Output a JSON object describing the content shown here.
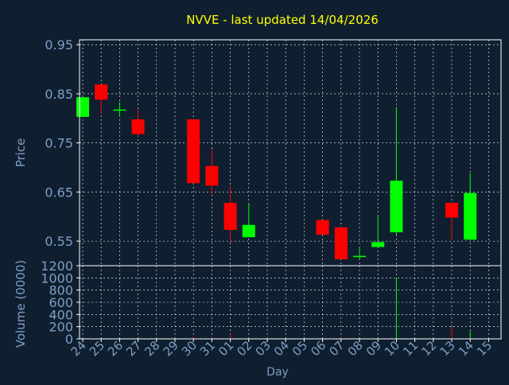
{
  "colors": {
    "background": "#0f1f30",
    "title": "#ffff00",
    "axis_text": "#7f9fc4",
    "frame": "#ffffff",
    "grid": "#ffffff",
    "up": "#00ff00",
    "down": "#ff0000"
  },
  "chart_data": [
    {
      "type": "candlestick",
      "title": "NVVE - last updated 14/04/2026",
      "ylabel": "Price",
      "ylim": [
        0.5,
        0.96
      ],
      "yticks": [
        "0.95",
        "0.85",
        "0.75",
        "0.65",
        "0.55"
      ],
      "ytick_values": [
        0.95,
        0.85,
        0.75,
        0.65,
        0.55
      ],
      "grid": true,
      "x_categories": [
        "24",
        "25",
        "26",
        "27",
        "28",
        "29",
        "30",
        "31",
        "01",
        "02",
        "03",
        "04",
        "05",
        "06",
        "07",
        "08",
        "09",
        "10",
        "11",
        "12",
        "13",
        "14",
        "15"
      ],
      "candles": [
        {
          "day": "24",
          "open": 0.803,
          "high": 0.843,
          "low": 0.803,
          "close": 0.843
        },
        {
          "day": "25",
          "open": 0.869,
          "high": 0.869,
          "low": 0.808,
          "close": 0.838
        },
        {
          "day": "26",
          "open": 0.818,
          "high": 0.833,
          "low": 0.803,
          "close": 0.818
        },
        {
          "day": "27",
          "open": 0.798,
          "high": 0.818,
          "low": 0.763,
          "close": 0.768
        },
        {
          "day": "30",
          "open": 0.798,
          "high": 0.798,
          "low": 0.668,
          "close": 0.668
        },
        {
          "day": "31",
          "open": 0.703,
          "high": 0.738,
          "low": 0.643,
          "close": 0.663
        },
        {
          "day": "01",
          "open": 0.628,
          "high": 0.663,
          "low": 0.548,
          "close": 0.573
        },
        {
          "day": "02",
          "open": 0.558,
          "high": 0.628,
          "low": 0.558,
          "close": 0.583
        },
        {
          "day": "06",
          "open": 0.593,
          "high": 0.593,
          "low": 0.563,
          "close": 0.563
        },
        {
          "day": "07",
          "open": 0.578,
          "high": 0.578,
          "low": 0.513,
          "close": 0.513
        },
        {
          "day": "08",
          "open": 0.518,
          "high": 0.538,
          "low": 0.513,
          "close": 0.52
        },
        {
          "day": "09",
          "open": 0.538,
          "high": 0.603,
          "low": 0.538,
          "close": 0.548
        },
        {
          "day": "10",
          "open": 0.568,
          "high": 0.823,
          "low": 0.563,
          "close": 0.673
        },
        {
          "day": "13",
          "open": 0.628,
          "high": 0.628,
          "low": 0.553,
          "close": 0.598
        },
        {
          "day": "14",
          "open": 0.553,
          "high": 0.688,
          "low": 0.553,
          "close": 0.648
        }
      ]
    },
    {
      "type": "bar",
      "ylabel": "Volume (0000)",
      "xlabel": "Day",
      "ylim": [
        0,
        1200
      ],
      "yticks": [
        "1200",
        "1000",
        "800",
        "600",
        "400",
        "200",
        "0"
      ],
      "ytick_values": [
        1200,
        1000,
        800,
        600,
        400,
        200,
        0
      ],
      "grid": true,
      "x_categories": [
        "24",
        "25",
        "26",
        "27",
        "28",
        "29",
        "30",
        "31",
        "01",
        "02",
        "03",
        "04",
        "05",
        "06",
        "07",
        "08",
        "09",
        "10",
        "11",
        "12",
        "13",
        "14",
        "15"
      ],
      "values": [
        {
          "day": "24",
          "volume": 5,
          "direction": "up"
        },
        {
          "day": "25",
          "volume": 5,
          "direction": "down"
        },
        {
          "day": "27",
          "volume": 10,
          "direction": "down"
        },
        {
          "day": "30",
          "volume": 30,
          "direction": "down"
        },
        {
          "day": "31",
          "volume": 25,
          "direction": "down"
        },
        {
          "day": "01",
          "volume": 80,
          "direction": "down"
        },
        {
          "day": "02",
          "volume": 10,
          "direction": "up"
        },
        {
          "day": "06",
          "volume": 10,
          "direction": "down"
        },
        {
          "day": "07",
          "volume": 15,
          "direction": "down"
        },
        {
          "day": "08",
          "volume": 5,
          "direction": "up"
        },
        {
          "day": "09",
          "volume": 10,
          "direction": "up"
        },
        {
          "day": "10",
          "volume": 1000,
          "direction": "up"
        },
        {
          "day": "13",
          "volume": 190,
          "direction": "down"
        },
        {
          "day": "14",
          "volume": 130,
          "direction": "up"
        }
      ]
    }
  ]
}
